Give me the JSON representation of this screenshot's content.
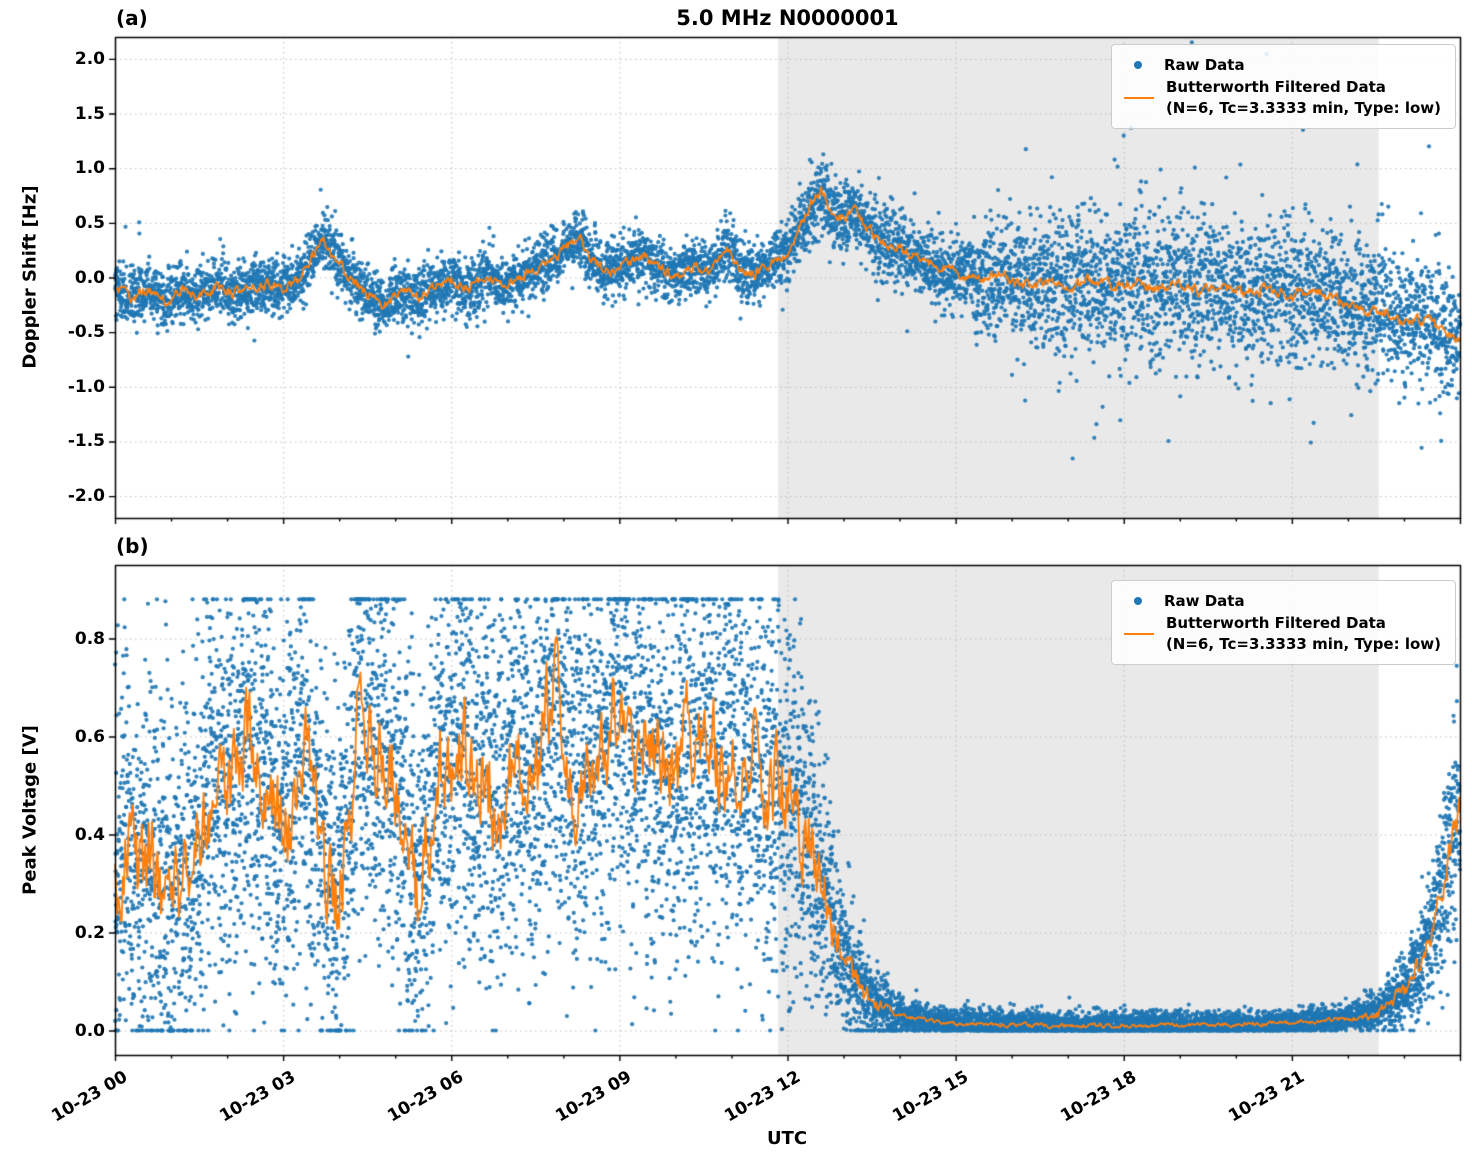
{
  "figure": {
    "title": "5.0 MHz N0000001",
    "panel_a_label": "(a)",
    "panel_b_label": "(b)",
    "xlabel": "UTC"
  },
  "legend": {
    "raw_label": "Raw Data",
    "filtered_label": "Butterworth Filtered Data",
    "filtered_sublabel": "(N=6, Tc=3.3333 min, Type: low)",
    "position": "upper right"
  },
  "colors": {
    "raw": "#1f77b4",
    "filtered": "#ff7f0e",
    "shading": "#e9e9e9",
    "grid": "#bdbdbd",
    "axis": "#000000"
  },
  "chart_data": [
    {
      "id": "a",
      "type": "scatter",
      "title": "5.0 MHz N0000001",
      "ylabel": "Doppler Shift [Hz]",
      "ylim": [
        -2.2,
        2.2
      ],
      "yticks": [
        2.0,
        1.5,
        1.0,
        0.5,
        0.0,
        -0.5,
        -1.0,
        -1.5,
        -2.0
      ],
      "ytick_labels": [
        "2.0",
        "1.5",
        "1.0",
        "0.5",
        "0.0",
        "-0.5",
        "-1.0",
        "-1.5",
        "-2.0"
      ],
      "xlim_hours": [
        0,
        24
      ],
      "xticks_hours": [
        0,
        3,
        6,
        9,
        12,
        15,
        18,
        21
      ],
      "xtick_labels": [],
      "grid": true,
      "shaded_region_hours": [
        11.83,
        22.55
      ],
      "legend_entries": [
        "Raw Data",
        "Butterworth Filtered Data (N=6, Tc=3.3333 min, Type: low)"
      ],
      "series": {
        "filtered_line": [
          [
            0,
            -0.08
          ],
          [
            0.3,
            -0.2
          ],
          [
            0.6,
            -0.1
          ],
          [
            0.9,
            -0.22
          ],
          [
            1.2,
            -0.12
          ],
          [
            1.5,
            -0.18
          ],
          [
            1.8,
            -0.08
          ],
          [
            2.1,
            -0.15
          ],
          [
            2.4,
            -0.1
          ],
          [
            2.7,
            -0.05
          ],
          [
            3.0,
            -0.12
          ],
          [
            3.3,
            0.0
          ],
          [
            3.6,
            0.25
          ],
          [
            3.75,
            0.33
          ],
          [
            3.9,
            0.2
          ],
          [
            4.2,
            0.0
          ],
          [
            4.5,
            -0.15
          ],
          [
            4.8,
            -0.25
          ],
          [
            5.1,
            -0.12
          ],
          [
            5.4,
            -0.18
          ],
          [
            5.7,
            -0.08
          ],
          [
            6.0,
            -0.02
          ],
          [
            6.3,
            -0.12
          ],
          [
            6.6,
            0.02
          ],
          [
            6.9,
            -0.08
          ],
          [
            7.2,
            0.0
          ],
          [
            7.5,
            0.08
          ],
          [
            7.8,
            0.15
          ],
          [
            8.1,
            0.3
          ],
          [
            8.3,
            0.38
          ],
          [
            8.5,
            0.15
          ],
          [
            8.8,
            0.05
          ],
          [
            9.1,
            0.12
          ],
          [
            9.4,
            0.2
          ],
          [
            9.7,
            0.1
          ],
          [
            10.0,
            0.02
          ],
          [
            10.3,
            0.1
          ],
          [
            10.6,
            0.05
          ],
          [
            10.9,
            0.28
          ],
          [
            11.1,
            0.1
          ],
          [
            11.4,
            0.02
          ],
          [
            11.7,
            0.12
          ],
          [
            12.0,
            0.25
          ],
          [
            12.2,
            0.45
          ],
          [
            12.4,
            0.65
          ],
          [
            12.6,
            0.8
          ],
          [
            12.8,
            0.6
          ],
          [
            13.0,
            0.55
          ],
          [
            13.2,
            0.62
          ],
          [
            13.4,
            0.45
          ],
          [
            13.6,
            0.38
          ],
          [
            13.8,
            0.3
          ],
          [
            14.0,
            0.28
          ],
          [
            14.3,
            0.18
          ],
          [
            14.6,
            0.12
          ],
          [
            15.0,
            0.05
          ],
          [
            15.4,
            -0.02
          ],
          [
            15.8,
            0.03
          ],
          [
            16.2,
            -0.08
          ],
          [
            16.6,
            -0.03
          ],
          [
            17.0,
            -0.1
          ],
          [
            17.4,
            -0.02
          ],
          [
            17.8,
            -0.08
          ],
          [
            18.2,
            -0.04
          ],
          [
            18.6,
            -0.12
          ],
          [
            19.0,
            -0.05
          ],
          [
            19.4,
            -0.12
          ],
          [
            19.8,
            -0.08
          ],
          [
            20.2,
            -0.15
          ],
          [
            20.6,
            -0.1
          ],
          [
            21.0,
            -0.18
          ],
          [
            21.4,
            -0.12
          ],
          [
            21.8,
            -0.22
          ],
          [
            22.2,
            -0.28
          ],
          [
            22.6,
            -0.32
          ],
          [
            23.0,
            -0.42
          ],
          [
            23.4,
            -0.38
          ],
          [
            23.7,
            -0.5
          ],
          [
            24,
            -0.6
          ]
        ],
        "scatter_sigma": [
          [
            0,
            0.13
          ],
          [
            11.8,
            0.13
          ],
          [
            12.1,
            0.15
          ],
          [
            12.6,
            0.18
          ],
          [
            13.5,
            0.17
          ],
          [
            14.5,
            0.15
          ],
          [
            15.5,
            0.22
          ],
          [
            16.5,
            0.3
          ],
          [
            18,
            0.35
          ],
          [
            20,
            0.33
          ],
          [
            21.5,
            0.3
          ],
          [
            23,
            0.3
          ],
          [
            24,
            0.27
          ]
        ],
        "outlier_prob": [
          [
            0,
            0.004
          ],
          [
            14.8,
            0.004
          ],
          [
            15.2,
            0.03
          ],
          [
            16,
            0.05
          ],
          [
            18,
            0.06
          ],
          [
            20,
            0.05
          ],
          [
            21.5,
            0.04
          ],
          [
            23,
            0.035
          ],
          [
            24,
            0.04
          ]
        ],
        "outlier_scale": 2.6,
        "line_jitter": [
          [
            0,
            0.045
          ],
          [
            24,
            0.045
          ]
        ],
        "value_clip": [
          -2.15,
          2.15
        ],
        "n_points": 8000,
        "seed": 42
      }
    },
    {
      "id": "b",
      "type": "scatter",
      "title": "",
      "ylabel": "Peak Voltage [V]",
      "ylim": [
        -0.05,
        0.95
      ],
      "yticks": [
        0.0,
        0.2,
        0.4,
        0.6,
        0.8
      ],
      "ytick_labels": [
        "0.0",
        "0.2",
        "0.4",
        "0.6",
        "0.8"
      ],
      "xlim_hours": [
        0,
        24
      ],
      "xticks_hours": [
        0,
        3,
        6,
        9,
        12,
        15,
        18,
        21
      ],
      "xtick_labels": [
        "10-23 00",
        "10-23 03",
        "10-23 06",
        "10-23 09",
        "10-23 12",
        "10-23 15",
        "10-23 18",
        "10-23 21"
      ],
      "grid": true,
      "shaded_region_hours": [
        11.83,
        22.55
      ],
      "legend_entries": [
        "Raw Data",
        "Butterworth Filtered Data (N=6, Tc=3.3333 min, Type: low)"
      ],
      "series": {
        "filtered_line": [
          [
            0,
            0.28
          ],
          [
            0.2,
            0.42
          ],
          [
            0.4,
            0.3
          ],
          [
            0.6,
            0.35
          ],
          [
            0.8,
            0.3
          ],
          [
            1.0,
            0.32
          ],
          [
            1.2,
            0.28
          ],
          [
            1.4,
            0.38
          ],
          [
            1.6,
            0.45
          ],
          [
            1.8,
            0.5
          ],
          [
            2.0,
            0.45
          ],
          [
            2.2,
            0.52
          ],
          [
            2.4,
            0.6
          ],
          [
            2.6,
            0.52
          ],
          [
            2.8,
            0.45
          ],
          [
            3.0,
            0.4
          ],
          [
            3.2,
            0.48
          ],
          [
            3.4,
            0.55
          ],
          [
            3.6,
            0.42
          ],
          [
            3.8,
            0.28
          ],
          [
            4.0,
            0.25
          ],
          [
            4.2,
            0.45
          ],
          [
            4.4,
            0.68
          ],
          [
            4.6,
            0.55
          ],
          [
            4.8,
            0.6
          ],
          [
            5.0,
            0.52
          ],
          [
            5.2,
            0.38
          ],
          [
            5.4,
            0.28
          ],
          [
            5.6,
            0.42
          ],
          [
            5.8,
            0.55
          ],
          [
            6.0,
            0.5
          ],
          [
            6.2,
            0.6
          ],
          [
            6.4,
            0.48
          ],
          [
            6.6,
            0.55
          ],
          [
            6.8,
            0.45
          ],
          [
            7.0,
            0.52
          ],
          [
            7.2,
            0.58
          ],
          [
            7.4,
            0.48
          ],
          [
            7.6,
            0.55
          ],
          [
            7.8,
            0.7
          ],
          [
            8.0,
            0.62
          ],
          [
            8.2,
            0.5
          ],
          [
            8.4,
            0.58
          ],
          [
            8.6,
            0.52
          ],
          [
            8.8,
            0.6
          ],
          [
            9.0,
            0.68
          ],
          [
            9.2,
            0.55
          ],
          [
            9.4,
            0.62
          ],
          [
            9.6,
            0.52
          ],
          [
            9.8,
            0.58
          ],
          [
            10.0,
            0.5
          ],
          [
            10.2,
            0.62
          ],
          [
            10.4,
            0.55
          ],
          [
            10.6,
            0.6
          ],
          [
            10.8,
            0.52
          ],
          [
            11.0,
            0.58
          ],
          [
            11.2,
            0.5
          ],
          [
            11.4,
            0.56
          ],
          [
            11.6,
            0.48
          ],
          [
            11.8,
            0.52
          ],
          [
            12.0,
            0.46
          ],
          [
            12.2,
            0.42
          ],
          [
            12.4,
            0.38
          ],
          [
            12.6,
            0.3
          ],
          [
            12.8,
            0.22
          ],
          [
            13.0,
            0.14
          ],
          [
            13.2,
            0.1
          ],
          [
            13.4,
            0.07
          ],
          [
            13.6,
            0.05
          ],
          [
            13.8,
            0.04
          ],
          [
            14.0,
            0.03
          ],
          [
            14.5,
            0.02
          ],
          [
            15.0,
            0.015
          ],
          [
            16.0,
            0.012
          ],
          [
            17.0,
            0.01
          ],
          [
            18.0,
            0.01
          ],
          [
            19.0,
            0.012
          ],
          [
            20.0,
            0.012
          ],
          [
            21.0,
            0.015
          ],
          [
            21.5,
            0.02
          ],
          [
            22.0,
            0.025
          ],
          [
            22.3,
            0.03
          ],
          [
            22.6,
            0.045
          ],
          [
            22.9,
            0.07
          ],
          [
            23.1,
            0.1
          ],
          [
            23.3,
            0.14
          ],
          [
            23.5,
            0.2
          ],
          [
            23.7,
            0.3
          ],
          [
            23.85,
            0.38
          ],
          [
            24,
            0.45
          ]
        ],
        "scatter_sigma": [
          [
            0,
            0.2
          ],
          [
            11.9,
            0.2
          ],
          [
            12.3,
            0.17
          ],
          [
            12.7,
            0.12
          ],
          [
            13.0,
            0.08
          ],
          [
            13.4,
            0.05
          ],
          [
            13.8,
            0.03
          ],
          [
            14.2,
            0.015
          ],
          [
            22.0,
            0.012
          ],
          [
            22.5,
            0.02
          ],
          [
            22.9,
            0.035
          ],
          [
            23.2,
            0.05
          ],
          [
            23.5,
            0.07
          ],
          [
            23.8,
            0.1
          ],
          [
            24,
            0.11
          ]
        ],
        "outlier_prob": [
          [
            0,
            0.0
          ],
          [
            24,
            0.0
          ]
        ],
        "outlier_scale": 1.0,
        "line_jitter": [
          [
            0,
            0.09
          ],
          [
            12.2,
            0.09
          ],
          [
            13.0,
            0.03
          ],
          [
            14.0,
            0.004
          ],
          [
            22.0,
            0.004
          ],
          [
            23.0,
            0.02
          ],
          [
            24,
            0.03
          ]
        ],
        "value_clip": [
          0.0,
          0.88
        ],
        "n_points": 11000,
        "seed": 7
      }
    }
  ]
}
